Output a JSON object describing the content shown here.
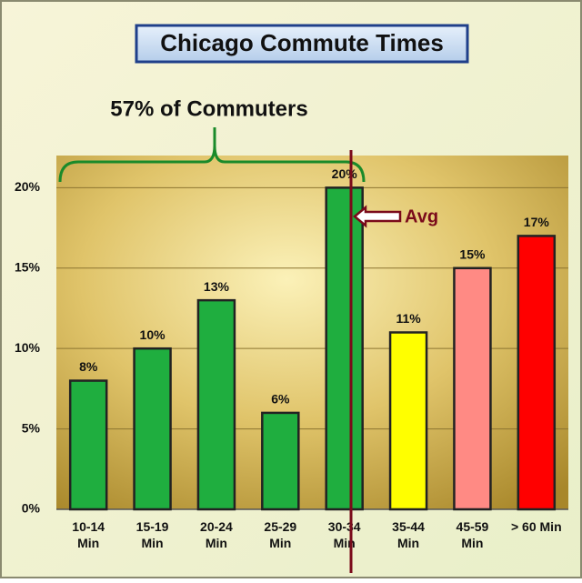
{
  "chart_data": {
    "type": "bar",
    "title": "Chicago Commute Times",
    "categories": [
      "10-14\nMin",
      "15-19\nMin",
      "20-24\nMin",
      "25-29\nMin",
      "30-34\nMin",
      "35-44\nMin",
      "45-59\nMin",
      "> 60 Min"
    ],
    "values": [
      8,
      10,
      13,
      6,
      20,
      11,
      15,
      17
    ],
    "value_labels": [
      "8%",
      "10%",
      "13%",
      "6%",
      "20%",
      "11%",
      "15%",
      "17%"
    ],
    "colors": [
      "#1fae3f",
      "#1fae3f",
      "#1fae3f",
      "#1fae3f",
      "#1fae3f",
      "#ffff00",
      "#ff8a84",
      "#ff0000"
    ],
    "ylim": [
      0,
      22
    ],
    "yticks": [
      {
        "value": 0,
        "label": "0%"
      },
      {
        "value": 5,
        "label": "5%"
      },
      {
        "value": 10,
        "label": "10%"
      },
      {
        "value": 15,
        "label": "15%"
      },
      {
        "value": 20,
        "label": "20%"
      }
    ],
    "grid": true,
    "annotations": [
      "57% of Commuters",
      "Avg"
    ]
  }
}
